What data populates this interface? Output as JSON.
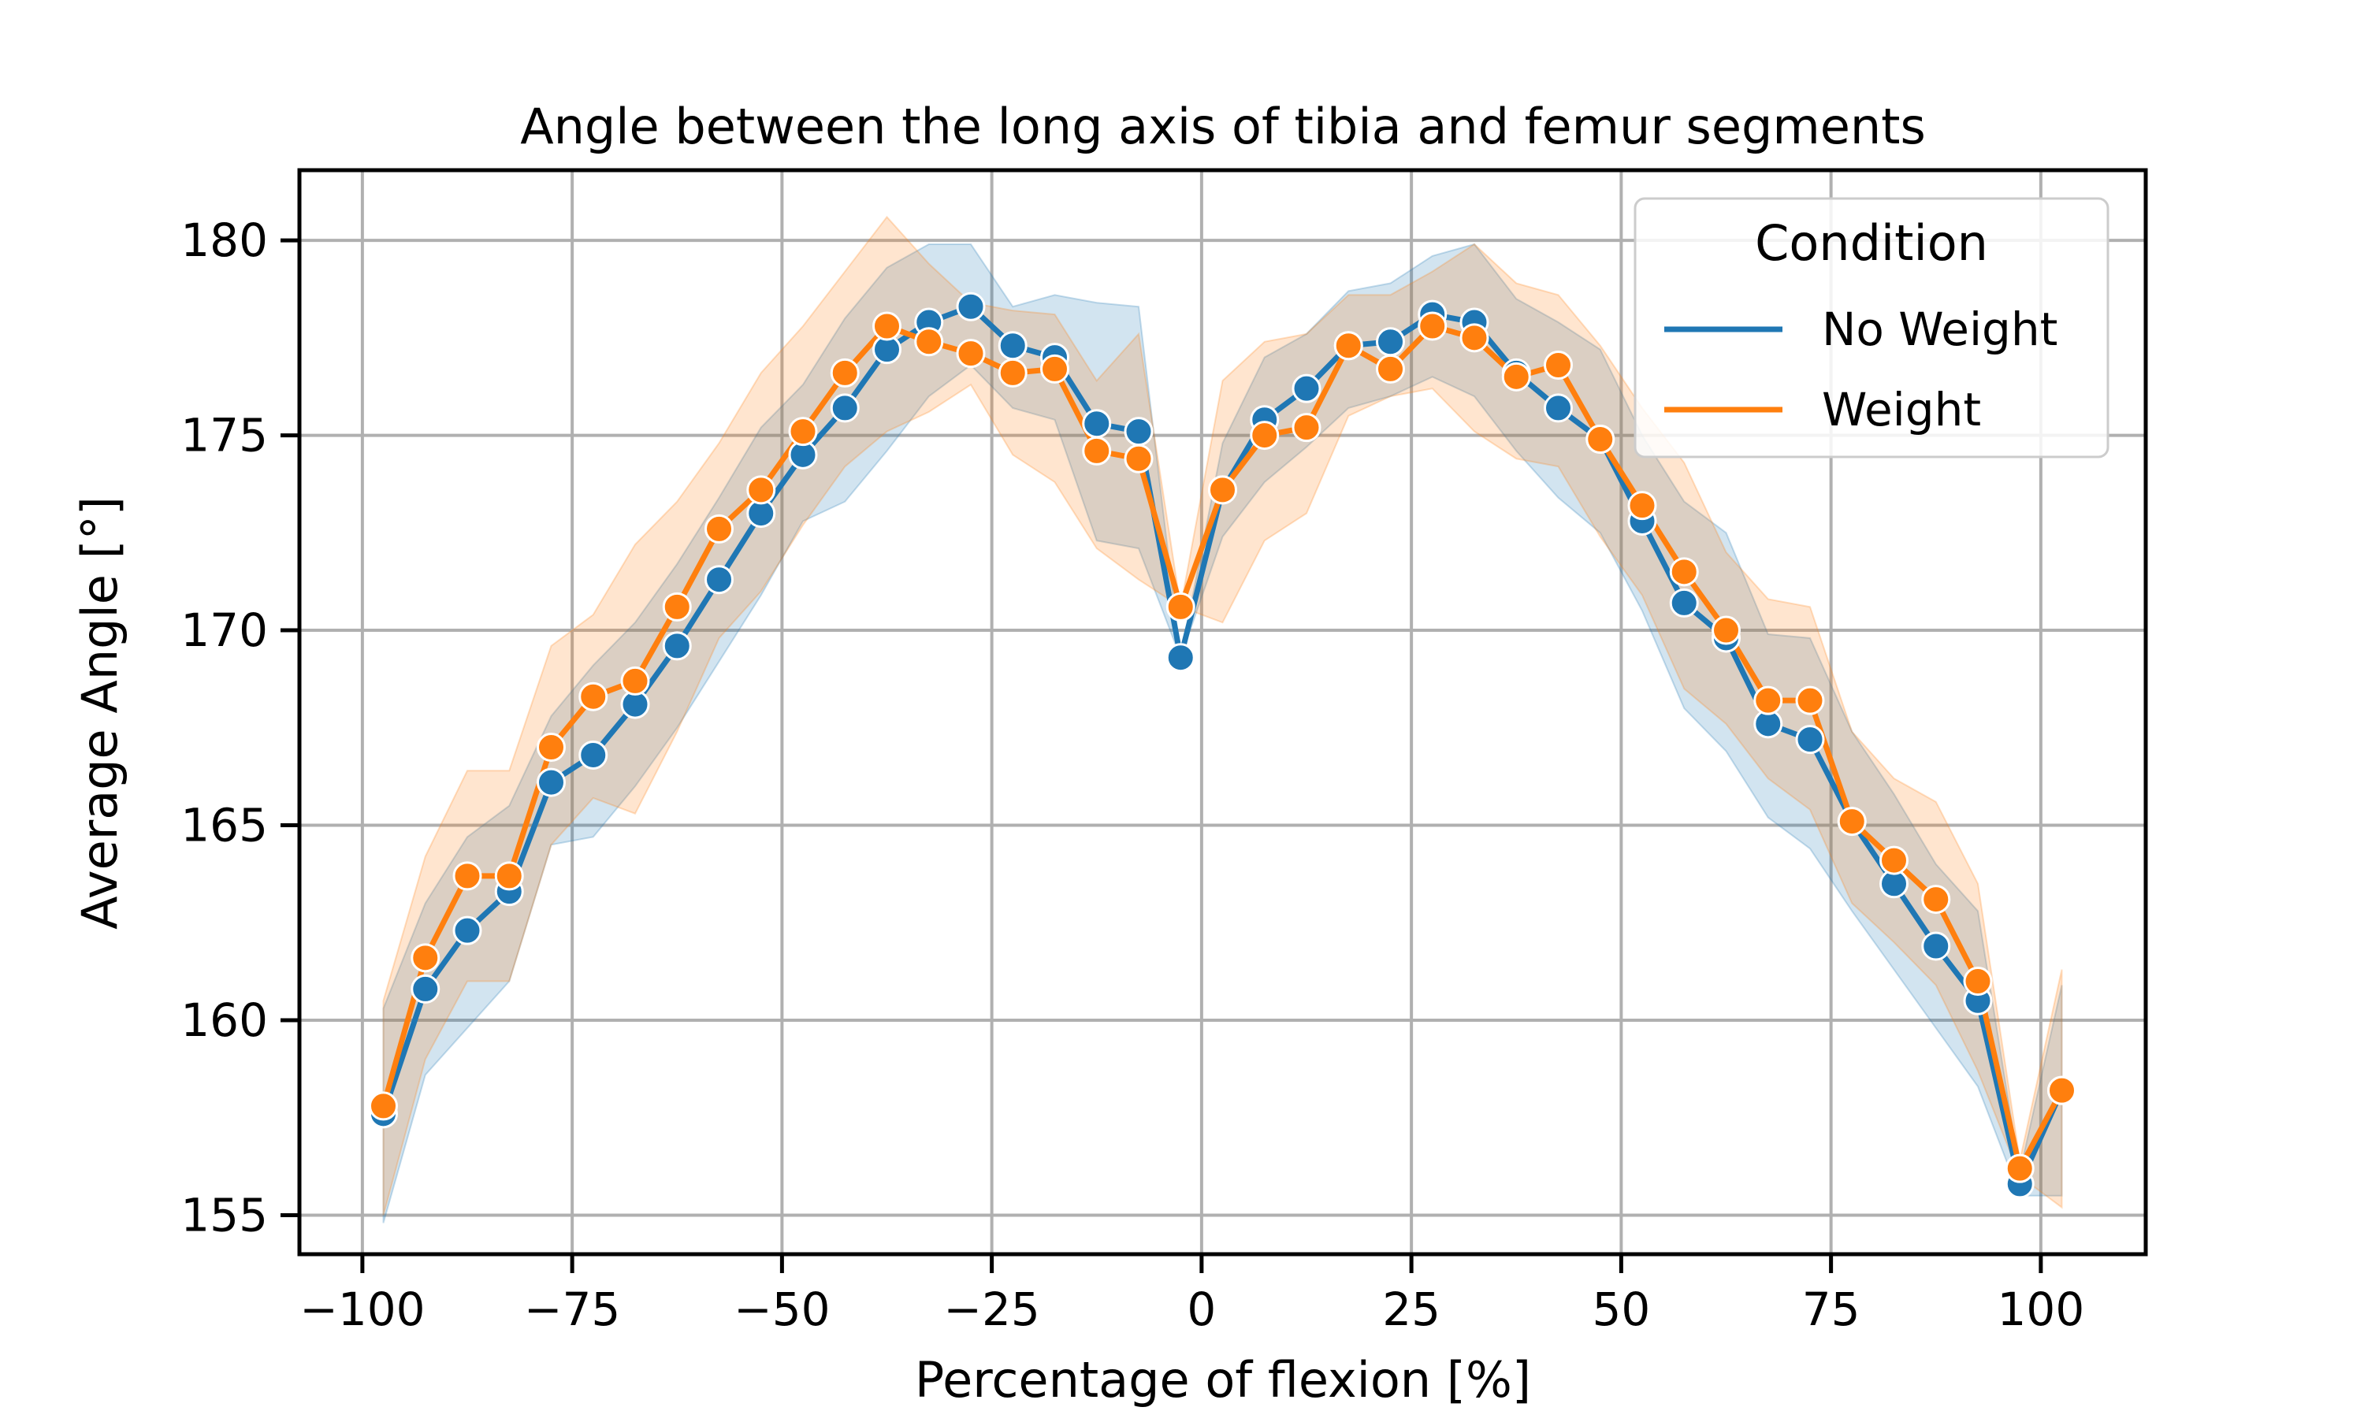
{
  "chart_data": {
    "type": "line",
    "title": "Angle between the long axis of tibia and femur segments",
    "xlabel": "Percentage of flexion [%]",
    "ylabel": "Average Angle [°]",
    "xlim": [
      -107.5,
      112.5
    ],
    "ylim": [
      154,
      181.8
    ],
    "xticks": [
      -100,
      -75,
      -50,
      -25,
      0,
      25,
      50,
      75,
      100
    ],
    "xtick_labels": [
      "−100",
      "−75",
      "−50",
      "−25",
      "0",
      "25",
      "50",
      "75",
      "100"
    ],
    "yticks": [
      155,
      160,
      165,
      170,
      175,
      180
    ],
    "ytick_labels": [
      "155",
      "160",
      "165",
      "170",
      "175",
      "180"
    ],
    "grid": true,
    "legend": {
      "title": "Condition",
      "position": "top-right"
    },
    "x": [
      -97.5,
      -92.5,
      -87.5,
      -82.5,
      -77.5,
      -72.5,
      -67.5,
      -62.5,
      -57.5,
      -52.5,
      -47.5,
      -42.5,
      -37.5,
      -32.5,
      -27.5,
      -22.5,
      -17.5,
      -12.5,
      -7.5,
      -2.5,
      2.5,
      7.5,
      12.5,
      17.5,
      22.5,
      27.5,
      32.5,
      37.5,
      42.5,
      47.5,
      52.5,
      57.5,
      62.5,
      67.5,
      72.5,
      77.5,
      82.5,
      87.5,
      92.5,
      97.5,
      102.5
    ],
    "series": [
      {
        "name": "No Weight",
        "color": "#1f77b4",
        "values": [
          157.6,
          160.8,
          162.3,
          163.3,
          166.1,
          166.8,
          168.1,
          169.6,
          171.3,
          173.0,
          174.5,
          175.7,
          177.2,
          177.9,
          178.3,
          177.3,
          177.0,
          175.3,
          175.1,
          169.3,
          173.6,
          175.4,
          176.2,
          177.3,
          177.4,
          178.1,
          177.9,
          176.6,
          175.7,
          174.9,
          172.8,
          170.7,
          169.8,
          167.6,
          167.2,
          165.1,
          163.5,
          161.9,
          160.5,
          155.8,
          158.2
        ],
        "ci_lower": [
          154.8,
          158.6,
          159.8,
          161.0,
          164.5,
          164.7,
          166.0,
          167.5,
          169.2,
          170.9,
          172.8,
          173.3,
          174.6,
          176.0,
          176.8,
          175.7,
          175.4,
          172.3,
          172.1,
          169.3,
          172.4,
          173.8,
          174.7,
          175.7,
          176.0,
          176.5,
          176.0,
          174.6,
          173.4,
          172.5,
          170.5,
          168.0,
          166.9,
          165.2,
          164.4,
          162.8,
          161.3,
          159.8,
          158.3,
          155.5,
          155.5
        ],
        "ci_upper": [
          160.3,
          163.0,
          164.7,
          165.5,
          167.8,
          169.1,
          170.2,
          171.7,
          173.4,
          175.2,
          176.3,
          178.0,
          179.3,
          179.9,
          179.9,
          178.3,
          178.6,
          178.4,
          178.3,
          169.3,
          174.8,
          177.0,
          177.6,
          178.7,
          178.9,
          179.6,
          179.9,
          178.5,
          177.9,
          177.2,
          175.0,
          173.3,
          172.5,
          169.9,
          169.8,
          167.4,
          165.8,
          164.0,
          162.8,
          156.1,
          160.9
        ]
      },
      {
        "name": "Weight",
        "color": "#ff7f0e",
        "values": [
          157.8,
          161.6,
          163.7,
          163.7,
          167.0,
          168.3,
          168.7,
          170.6,
          172.6,
          173.6,
          175.1,
          176.6,
          177.8,
          177.4,
          177.1,
          176.6,
          176.7,
          174.6,
          174.4,
          170.6,
          173.6,
          175.0,
          175.2,
          177.3,
          176.7,
          177.8,
          177.5,
          176.5,
          176.8,
          174.9,
          173.2,
          171.5,
          170.0,
          168.2,
          168.2,
          165.1,
          164.1,
          163.1,
          161.0,
          156.2,
          158.2
        ],
        "ci_lower": [
          155.0,
          159.0,
          161.0,
          161.0,
          164.5,
          165.7,
          165.3,
          167.4,
          169.8,
          171.0,
          172.7,
          174.2,
          175.1,
          175.6,
          176.3,
          174.5,
          173.8,
          172.1,
          171.3,
          170.6,
          170.2,
          172.3,
          173.0,
          175.5,
          176.0,
          176.2,
          175.1,
          174.4,
          174.2,
          172.4,
          170.9,
          168.5,
          167.6,
          166.2,
          165.4,
          163.0,
          162.0,
          160.9,
          158.7,
          156.0,
          155.2
        ],
        "ci_upper": [
          160.5,
          164.2,
          166.4,
          166.4,
          169.6,
          170.4,
          172.2,
          173.3,
          174.8,
          176.6,
          177.8,
          179.2,
          180.6,
          179.4,
          178.4,
          178.2,
          178.1,
          176.4,
          177.6,
          170.6,
          176.4,
          177.4,
          177.6,
          178.6,
          178.6,
          179.2,
          179.9,
          178.9,
          178.6,
          177.3,
          175.7,
          174.3,
          172.0,
          170.8,
          170.6,
          167.4,
          166.2,
          165.6,
          163.5,
          156.4,
          161.3
        ]
      }
    ]
  }
}
